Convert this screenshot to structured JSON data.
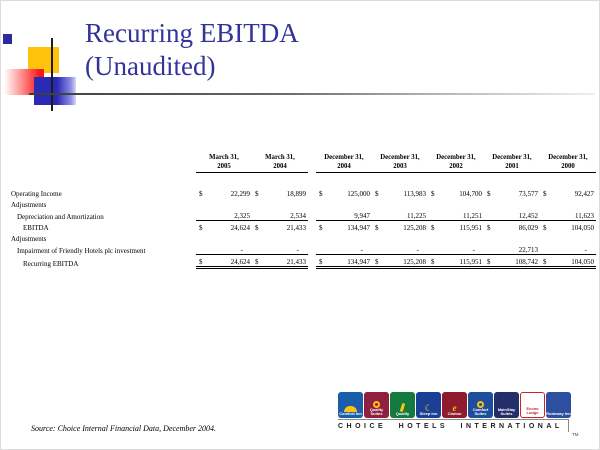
{
  "title": {
    "line1": "Recurring EBITDA",
    "line2": "(Unaudited)"
  },
  "source_note": "Source: Choice Internal Financial Data, December 2004.",
  "colors": {
    "title_text": "#333399",
    "decoration_yellow": "#ffc40a",
    "decoration_red": "#f81717",
    "decoration_blue": "#2a2ab4",
    "table_text": "#000000"
  },
  "table": {
    "columns": [
      {
        "line1": "March 31,",
        "line2": "2005",
        "group": "march"
      },
      {
        "line1": "March 31,",
        "line2": "2004",
        "group": "march"
      },
      {
        "line1": "December 31,",
        "line2": "2004",
        "group": "december"
      },
      {
        "line1": "December 31,",
        "line2": "2003",
        "group": "december"
      },
      {
        "line1": "December 31,",
        "line2": "2002",
        "group": "december"
      },
      {
        "line1": "December 31,",
        "line2": "2001",
        "group": "december"
      },
      {
        "line1": "December 31,",
        "line2": "2000",
        "group": "december"
      }
    ],
    "rows": [
      {
        "label": "Operating Income",
        "indent": 0,
        "dollar": true,
        "values": [
          "22,299",
          "18,899",
          "125,000",
          "113,983",
          "104,700",
          "73,577",
          "92,427"
        ]
      },
      {
        "label": "Adjustments",
        "indent": 0,
        "dollar": false,
        "values": []
      },
      {
        "label": "Depreciation and Amortization",
        "indent": 1,
        "dollar": false,
        "underline": true,
        "values": [
          "2,325",
          "2,534",
          "9,947",
          "11,225",
          "11,251",
          "12,452",
          "11,623"
        ]
      },
      {
        "label": "EBITDA",
        "indent": 2,
        "dollar": true,
        "values": [
          "24,624",
          "21,433",
          "134,947",
          "125,208",
          "115,951",
          "86,029",
          "104,050"
        ]
      },
      {
        "label": "Adjustments",
        "indent": 0,
        "dollar": false,
        "values": []
      },
      {
        "label": "Impairment of Friendly Hotels plc investment",
        "indent": 1,
        "dollar": false,
        "underline": true,
        "values": [
          "-",
          "-",
          "-",
          "-",
          "-",
          "22,713",
          "-"
        ]
      },
      {
        "label": "Recurring EBITDA",
        "indent": 2,
        "dollar": true,
        "double_underline": true,
        "values": [
          "24,624",
          "21,433",
          "134,947",
          "125,208",
          "115,951",
          "108,742",
          "104,050"
        ]
      }
    ]
  },
  "logos": {
    "wordmark": "CHOICE HOTELS INTERNATIONAL",
    "tm": "TM",
    "brands": [
      {
        "name": "Comfort Inn",
        "bg": "#1a5dab",
        "accent": "#ffc20e",
        "text": "#ffffff",
        "glyph": "sunrise"
      },
      {
        "name": "Quality Suites",
        "bg": "#8e2040",
        "accent": "#ffc20e",
        "text": "#ffffff",
        "glyph": "ring"
      },
      {
        "name": "Quality",
        "bg": "#157a3e",
        "accent": "#ffc20e",
        "text": "#ffffff",
        "glyph": "sprig"
      },
      {
        "name": "Sleep Inn",
        "bg": "#1c3f96",
        "accent": "#ffc20e",
        "text": "#ffffff",
        "glyph": "moon"
      },
      {
        "name": "Clarion",
        "bg": "#8f1b2e",
        "accent": "#ffc20e",
        "text": "#ffffff",
        "glyph": "swirl"
      },
      {
        "name": "Comfort Suites",
        "bg": "#1d4e9e",
        "accent": "#ffc20e",
        "text": "#ffffff",
        "glyph": "ring"
      },
      {
        "name": "MainStay Suites",
        "bg": "#232e6b",
        "accent": "#ffc20e",
        "text": "#ffffff",
        "glyph": "none"
      },
      {
        "name": "Econo Lodge",
        "bg": "#ffffff",
        "accent": "#cc2229",
        "text": "#cc2229",
        "glyph": "border"
      },
      {
        "name": "Rodeway Inn",
        "bg": "#2c4fa0",
        "accent": "#ffffff",
        "text": "#ffffff",
        "glyph": "none"
      }
    ]
  }
}
